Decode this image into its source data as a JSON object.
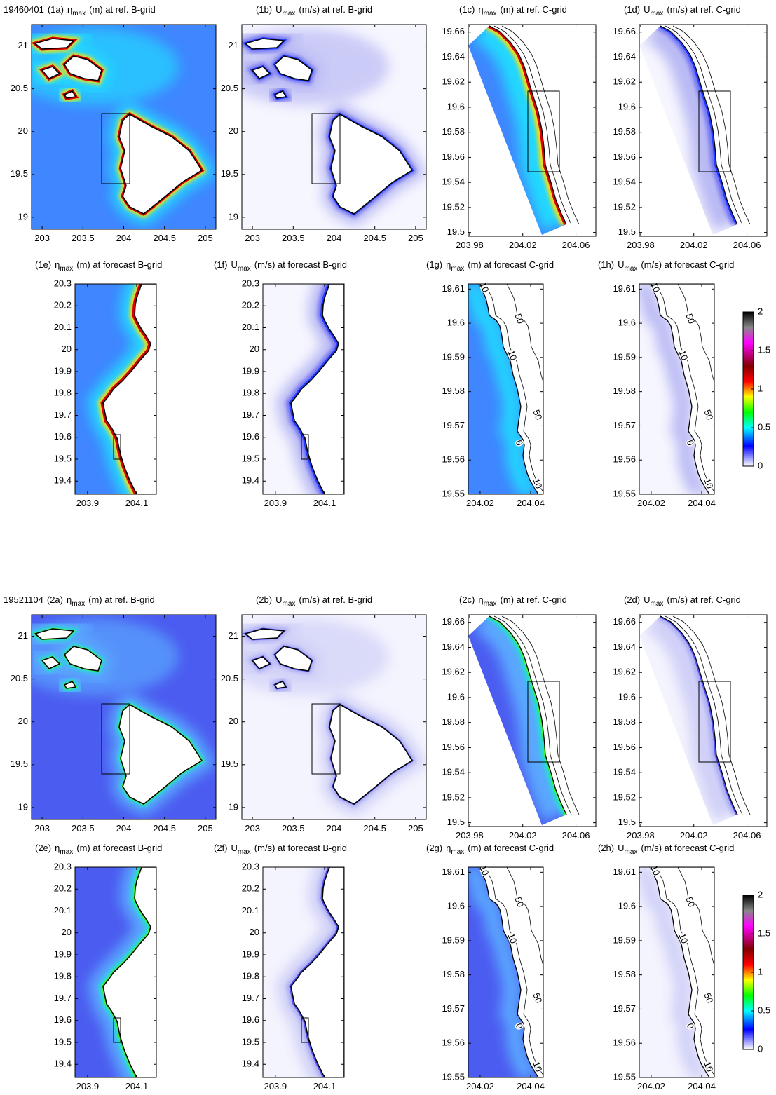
{
  "figures": [
    {
      "date": "19460401",
      "panels": [
        {
          "label": "(1a)",
          "symbol": "η",
          "sub": "max",
          "title": "(m) at ref. B-grid",
          "xlim": [
            202.87,
            205.13
          ],
          "xticks": [
            203,
            203.5,
            204,
            204.5,
            205
          ],
          "ylim": [
            18.86,
            21.25
          ],
          "yticks": [
            19,
            19.5,
            20,
            20.5,
            21
          ]
        },
        {
          "label": "(1b)",
          "symbol": "U",
          "sub": "max",
          "title": "(m/s) at ref. B-grid",
          "xlim": [
            202.87,
            205.13
          ],
          "xticks": [
            203,
            203.5,
            204,
            204.5,
            205
          ],
          "ylim": [
            18.86,
            21.25
          ],
          "yticks": [
            19,
            19.5,
            20,
            20.5,
            21
          ]
        },
        {
          "label": "(1c)",
          "symbol": "η",
          "sub": "max",
          "title": "(m) at ref. C-grid",
          "xlim": [
            203.979,
            204.075
          ],
          "xticks": [
            203.98,
            204.02,
            204.06
          ],
          "ylim": [
            19.497,
            19.666
          ],
          "yticks": [
            19.5,
            19.52,
            19.54,
            19.56,
            19.58,
            19.6,
            19.62,
            19.64,
            19.66
          ]
        },
        {
          "label": "(1d)",
          "symbol": "U",
          "sub": "max",
          "title": "(m/s) at ref. C-grid",
          "xlim": [
            203.979,
            204.075
          ],
          "xticks": [
            203.98,
            204.02,
            204.06
          ],
          "ylim": [
            19.497,
            19.666
          ],
          "yticks": [
            19.5,
            19.52,
            19.54,
            19.56,
            19.58,
            19.6,
            19.62,
            19.64,
            19.66
          ]
        },
        {
          "label": "(1e)",
          "symbol": "η",
          "sub": "max",
          "title": "(m) at forecast B-grid",
          "xlim": [
            203.849,
            204.18
          ],
          "xticks": [
            203.9,
            204.1
          ],
          "ylim": [
            19.34,
            20.3
          ],
          "yticks": [
            19.4,
            19.5,
            19.6,
            19.7,
            19.8,
            19.9,
            20,
            20.1,
            20.2,
            20.3
          ]
        },
        {
          "label": "(1f)",
          "symbol": "U",
          "sub": "max",
          "title": "(m/s) at forecast B-grid",
          "xlim": [
            203.849,
            204.18
          ],
          "xticks": [
            203.9,
            204.1
          ],
          "ylim": [
            19.34,
            20.3
          ],
          "yticks": [
            19.4,
            19.5,
            19.6,
            19.7,
            19.8,
            19.9,
            20,
            20.1,
            20.2,
            20.3
          ]
        },
        {
          "label": "(1g)",
          "symbol": "η",
          "sub": "max",
          "title": "(m) at forecast C-grid",
          "xlim": [
            204.0153,
            204.045
          ],
          "xticks": [
            204.02,
            204.04
          ],
          "ylim": [
            19.55,
            19.6115
          ],
          "yticks": [
            19.55,
            19.56,
            19.57,
            19.58,
            19.59,
            19.6,
            19.61
          ],
          "contour_labels": [
            "10",
            "50",
            "10",
            "50",
            "0",
            "10"
          ]
        },
        {
          "label": "(1h)",
          "symbol": "U",
          "sub": "max",
          "title": "(m/s) at forecast C-grid",
          "xlim": [
            204.0153,
            204.045
          ],
          "xticks": [
            204.02,
            204.04
          ],
          "ylim": [
            19.55,
            19.6115
          ],
          "yticks": [
            19.55,
            19.56,
            19.57,
            19.58,
            19.59,
            19.6,
            19.61
          ],
          "contour_labels": [
            "10",
            "50",
            "10",
            "50",
            "0",
            "10"
          ]
        }
      ],
      "colorbar": {
        "clim": [
          0,
          2
        ],
        "ticks": [
          0,
          0.5,
          1,
          1.5,
          2
        ]
      }
    },
    {
      "date": "19521104",
      "panels": [
        {
          "label": "(2a)",
          "symbol": "η",
          "sub": "max",
          "title": "(m) at ref. B-grid",
          "xlim": [
            202.87,
            205.13
          ],
          "xticks": [
            203,
            203.5,
            204,
            204.5,
            205
          ],
          "ylim": [
            18.86,
            21.25
          ],
          "yticks": [
            19,
            19.5,
            20,
            20.5,
            21
          ]
        },
        {
          "label": "(2b)",
          "symbol": "U",
          "sub": "max",
          "title": "(m/s) at ref. B-grid",
          "xlim": [
            202.87,
            205.13
          ],
          "xticks": [
            203,
            203.5,
            204,
            204.5,
            205
          ],
          "ylim": [
            18.86,
            21.25
          ],
          "yticks": [
            19,
            19.5,
            20,
            20.5,
            21
          ]
        },
        {
          "label": "(2c)",
          "symbol": "η",
          "sub": "max",
          "title": "(m) at ref. C-grid",
          "xlim": [
            203.979,
            204.075
          ],
          "xticks": [
            203.98,
            204.02,
            204.06
          ],
          "ylim": [
            19.497,
            19.666
          ],
          "yticks": [
            19.5,
            19.52,
            19.54,
            19.56,
            19.58,
            19.6,
            19.62,
            19.64,
            19.66
          ]
        },
        {
          "label": "(2d)",
          "symbol": "U",
          "sub": "max",
          "title": "(m/s) at ref. C-grid",
          "xlim": [
            203.979,
            204.075
          ],
          "xticks": [
            203.98,
            204.02,
            204.06
          ],
          "ylim": [
            19.497,
            19.666
          ],
          "yticks": [
            19.5,
            19.52,
            19.54,
            19.56,
            19.58,
            19.6,
            19.62,
            19.64,
            19.66
          ]
        },
        {
          "label": "(2e)",
          "symbol": "η",
          "sub": "max",
          "title": "(m) at forecast B-grid",
          "xlim": [
            203.849,
            204.18
          ],
          "xticks": [
            203.9,
            204.1
          ],
          "ylim": [
            19.34,
            20.3
          ],
          "yticks": [
            19.4,
            19.5,
            19.6,
            19.7,
            19.8,
            19.9,
            20,
            20.1,
            20.2,
            20.3
          ]
        },
        {
          "label": "(2f)",
          "symbol": "U",
          "sub": "max",
          "title": "(m/s) at forecast B-grid",
          "xlim": [
            203.849,
            204.18
          ],
          "xticks": [
            203.9,
            204.1
          ],
          "ylim": [
            19.34,
            20.3
          ],
          "yticks": [
            19.4,
            19.5,
            19.6,
            19.7,
            19.8,
            19.9,
            20,
            20.1,
            20.2,
            20.3
          ]
        },
        {
          "label": "(2g)",
          "symbol": "η",
          "sub": "max",
          "title": "(m) at forecast C-grid",
          "xlim": [
            204.0153,
            204.045
          ],
          "xticks": [
            204.02,
            204.04
          ],
          "ylim": [
            19.55,
            19.6115
          ],
          "yticks": [
            19.55,
            19.56,
            19.57,
            19.58,
            19.59,
            19.6,
            19.61
          ],
          "contour_labels": [
            "10",
            "50",
            "10",
            "50",
            "0",
            "10"
          ]
        },
        {
          "label": "(2h)",
          "symbol": "U",
          "sub": "max",
          "title": "(m/s) at forecast C-grid",
          "xlim": [
            204.0153,
            204.045
          ],
          "xticks": [
            204.02,
            204.04
          ],
          "ylim": [
            19.55,
            19.6115
          ],
          "yticks": [
            19.55,
            19.56,
            19.57,
            19.58,
            19.59,
            19.6,
            19.61
          ],
          "contour_labels": [
            "10",
            "50",
            "10",
            "50",
            "0",
            "10"
          ]
        }
      ],
      "colorbar": {
        "clim": [
          0,
          2
        ],
        "ticks": [
          0,
          0.5,
          1,
          1.5,
          2
        ]
      }
    }
  ]
}
